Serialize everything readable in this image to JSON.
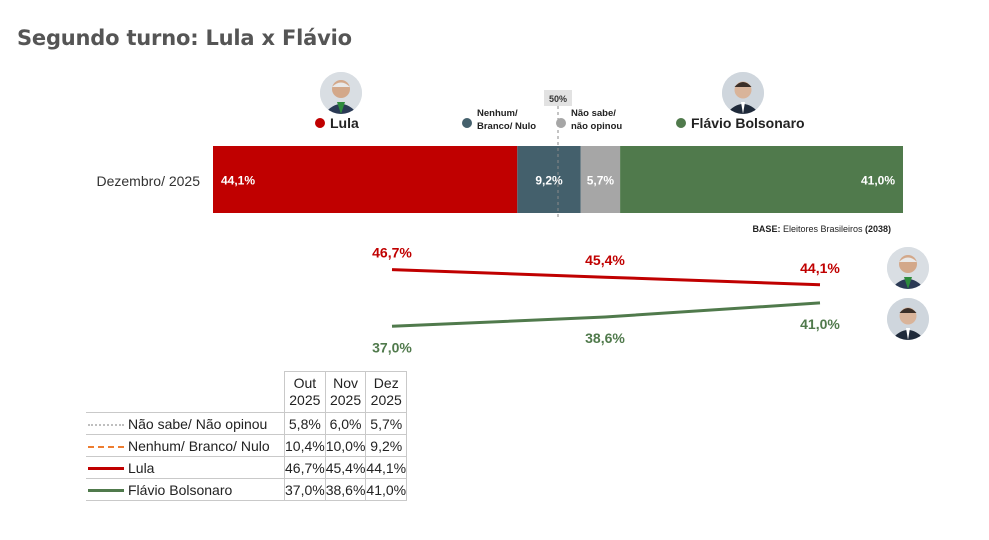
{
  "title": "Segundo turno: Lula x Flávio",
  "chart_data": [
    {
      "type": "bar",
      "orientation": "horizontal-stacked",
      "categories": [
        "Dezembro/ 2025"
      ],
      "series": [
        {
          "name": "Lula",
          "values": [
            44.1
          ],
          "label": "44,1%",
          "color": "#c00000"
        },
        {
          "name": "Nenhum/ Branco/ Nulo",
          "values": [
            9.2
          ],
          "label": "9,2%",
          "color": "#44606c"
        },
        {
          "name": "Não sabe/ não opinou",
          "values": [
            5.7
          ],
          "label": "5,7%",
          "color": "#a6a6a6"
        },
        {
          "name": "Flávio Bolsonaro",
          "values": [
            41.0
          ],
          "label": "41,0%",
          "color": "#507a4c"
        }
      ],
      "reference_line": {
        "value": 50,
        "label": "50%"
      },
      "legend_labels": {
        "lula": "Lula",
        "nenhum_line1": "Nenhum/",
        "nenhum_line2": "Branco/ Nulo",
        "naosabe_line1": "Não sabe/",
        "naosabe_line2": "não opinou",
        "flavio": "Flávio Bolsonaro"
      },
      "base_note": {
        "bold1": "BASE:",
        "text": " Eleitores Brasileiros ",
        "bold2": "(2038)"
      }
    },
    {
      "type": "line",
      "x": [
        "Out 2025",
        "Nov 2025",
        "Dez 2025"
      ],
      "series": [
        {
          "name": "Lula",
          "values": [
            46.7,
            45.4,
            44.1
          ],
          "labels": [
            "46,7%",
            "45,4%",
            "44,1%"
          ],
          "color": "#c00000"
        },
        {
          "name": "Flávio Bolsonaro",
          "values": [
            37.0,
            38.6,
            41.0
          ],
          "labels": [
            "37,0%",
            "38,6%",
            "41,0%"
          ],
          "color": "#507a4c"
        }
      ]
    },
    {
      "type": "table",
      "columns": [
        {
          "line1": "Out",
          "line2": "2025"
        },
        {
          "line1": "Nov",
          "line2": "2025"
        },
        {
          "line1": "Dez",
          "line2": "2025"
        }
      ],
      "rows": [
        {
          "label": "Não sabe/ Não opinou",
          "values": [
            "5,8%",
            "6,0%",
            "5,7%"
          ],
          "color": "#bfbfbf",
          "dash": "dotted"
        },
        {
          "label": "Nenhum/ Branco/ Nulo",
          "values": [
            "10,4%",
            "10,0%",
            "9,2%"
          ],
          "color": "#ed7d31",
          "dash": "dashed"
        },
        {
          "label": "Lula",
          "values": [
            "46,7%",
            "45,4%",
            "44,1%"
          ],
          "color": "#c00000",
          "dash": "solid"
        },
        {
          "label": "Flávio Bolsonaro",
          "values": [
            "37,0%",
            "38,6%",
            "41,0%"
          ],
          "color": "#507a4c",
          "dash": "solid"
        }
      ]
    }
  ]
}
